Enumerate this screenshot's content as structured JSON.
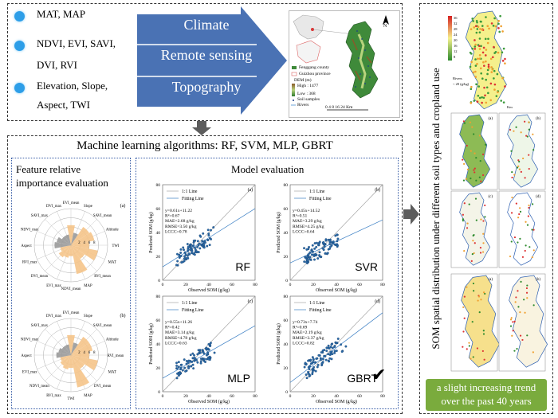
{
  "top": {
    "bullets": [
      {
        "text": "MAT, MAP"
      },
      {
        "text": "NDVI, EVI, SAVI,"
      },
      {
        "text2": "DVI, RVI"
      },
      {
        "text": "Elevation, Slope,"
      },
      {
        "text2": "Aspect, TWI"
      }
    ],
    "bullet_lines": [
      "MAT, MAP",
      "NDVI, EVI, SAVI,",
      "DVI, RVI",
      "Elevation, Slope,",
      "Aspect, TWI"
    ],
    "arrow_labels": [
      "Climate",
      "Remote sensing",
      "Topography"
    ],
    "map_legend": [
      "Fenggang county",
      "Guizhou province",
      "DEM (m)",
      "High : 1477",
      "Low : 368",
      "Soil samples",
      "Rivers"
    ],
    "map_scale": "0  4  8     16    24 Km",
    "map_north": "N"
  },
  "middle": {
    "title": "Machine learning algorithms: RF, SVM, MLP, GBRT",
    "feature_title_line1": "Feature relative",
    "feature_title_line2": "importance evaluation",
    "model_title": "Model evaluation",
    "radar_a_labels": [
      "EVI_mean",
      "Slope",
      "SAVI_mean",
      "Altitude",
      "TWI",
      "MAT",
      "RVI_mean",
      "MAP",
      "NDVI_mean",
      "EVI_max",
      "DVI_mean",
      "RVI_max",
      "Aspect",
      "NDVI_max",
      "SAVI_max",
      "DVI_max"
    ],
    "radar_b_labels": [
      "EVI_mean",
      "Slope",
      "SAVI_mean",
      "Altitude",
      "RVI_mean",
      "MAT",
      "DVI_mean",
      "MAP",
      "TWI",
      "RVI_max",
      "NDVI_mean",
      "EVI_max",
      "Aspect",
      "NDVI_max",
      "SAVI_max",
      "DVI_max"
    ],
    "radar_rings": [
      "2",
      "4",
      "6",
      "8"
    ],
    "radar_tags": [
      "(a)",
      "(b)"
    ],
    "xlabel": "Observed SOM (g/kg)",
    "ylabel": "Predicted SOM (g/kg)",
    "ticks": [
      "0",
      "20",
      "40",
      "60",
      "80"
    ],
    "legend": [
      "1:1 Line",
      "Fitting Line"
    ],
    "checkmark": "✔",
    "panels": [
      {
        "tag": "(a)",
        "model": "RF",
        "stats": [
          "y=0.61x+11.22",
          "R²=0.67",
          "MAE=2.68 g/kg",
          "RMSE=3.50 g/kg",
          "LCCC=0.78"
        ]
      },
      {
        "tag": "(b)",
        "model": "SVR",
        "stats": [
          "y=0.45x+14.52",
          "R²=0.51",
          "MAE=3.29 g/kg",
          "RMSE=4.25 g/kg",
          "LCCC=0.64"
        ]
      },
      {
        "tag": "(c)",
        "model": "MLP",
        "stats": [
          "y=0.55x+11.26",
          "R²=0.42",
          "MAE=3.14 g/kg",
          "RMSE=4.78 g/kg",
          "LCCC=0.63"
        ]
      },
      {
        "tag": "(d)",
        "model": "GBRT",
        "stats": [
          "y=0.73x+7.74",
          "R²=0.69",
          "MAE=2.19 g/kg",
          "RMSE=3.37 g/kg",
          "LCCC=0.82"
        ]
      }
    ]
  },
  "right": {
    "vertical_title": "SOM spatial distribution under different soil types and cropland use",
    "top_legend": [
      "36",
      "32",
      "28",
      "24",
      "20",
      "16",
      "12",
      "8",
      "Rivers",
      "< 20 (g/kg)"
    ],
    "km_label": "Km",
    "map_tags": [
      "(a)",
      "(b)",
      "(c)",
      "(d)",
      "(a)",
      "(b)"
    ],
    "conclusion_line1": "a slight increasing trend",
    "conclusion_line2": "over the past 40 years"
  },
  "colors": {
    "arrow": "#4a72b4",
    "dot": "#2d9ee8",
    "bar": "#f5c48a",
    "green_box": "#7aab3d",
    "fit_line": "#3b7fc4"
  }
}
